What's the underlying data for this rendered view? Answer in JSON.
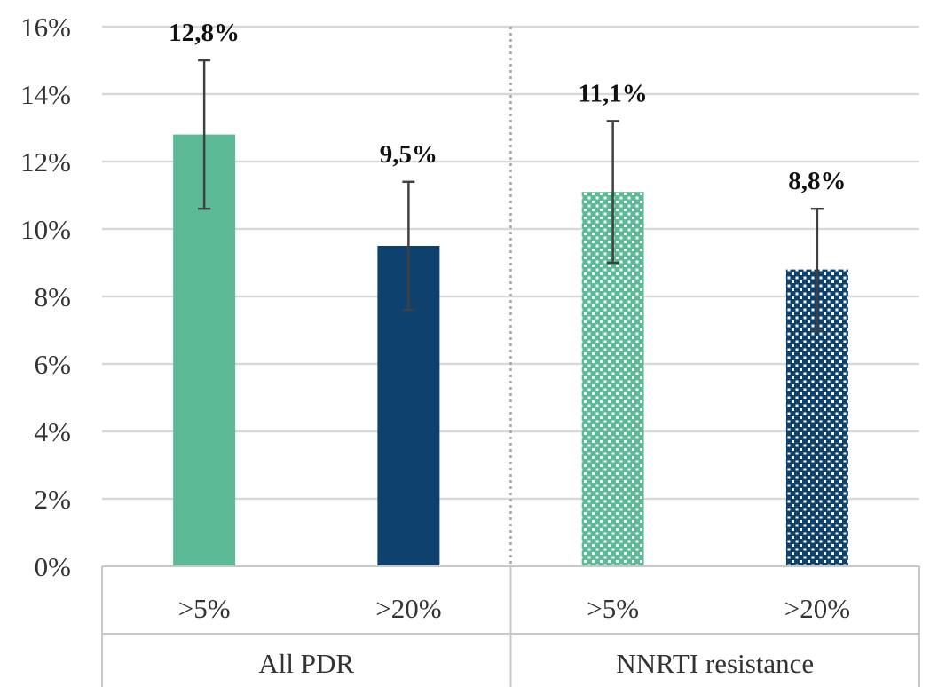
{
  "chart_data": {
    "type": "bar",
    "y_ticks": [
      "0%",
      "2%",
      "4%",
      "6%",
      "8%",
      "10%",
      "12%",
      "14%",
      "16%"
    ],
    "ylim": [
      0,
      16
    ],
    "grid": true,
    "groups": [
      {
        "label": "All PDR",
        "bars": [
          {
            "category": ">5%",
            "value": 12.8,
            "label": "12,8%",
            "ci": [
              10.6,
              15.0
            ],
            "color": "#5dba97",
            "pattern": "solid"
          },
          {
            "category": ">20%",
            "value": 9.5,
            "label": "9,5%",
            "ci": [
              7.6,
              11.4
            ],
            "color": "#0e416d",
            "pattern": "solid"
          }
        ]
      },
      {
        "label": "NNRTI resistance",
        "bars": [
          {
            "category": ">5%",
            "value": 11.1,
            "label": "11,1%",
            "ci": [
              9.0,
              13.2
            ],
            "color": "#5dba97",
            "pattern": "dotted"
          },
          {
            "category": ">20%",
            "value": 8.8,
            "label": "8,8%",
            "ci": [
              7.0,
              10.6
            ],
            "color": "#0e416d",
            "pattern": "dotted"
          }
        ]
      }
    ]
  }
}
